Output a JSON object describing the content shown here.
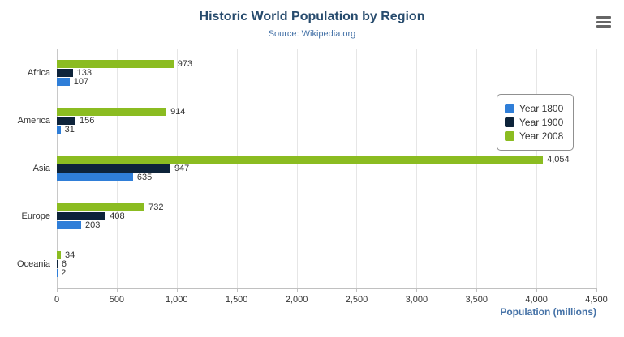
{
  "colors": {
    "title": "#274b6d",
    "subtitle": "#4572a7",
    "axis_title": "#4572a7",
    "grid": "#e6e6e6",
    "year_1800": "#2f7ed8",
    "year_1900": "#0d233a",
    "year_2008": "#8bbc21"
  },
  "menu": {
    "icon": "hamburger-icon"
  },
  "chart_data": {
    "type": "bar",
    "title": "Historic World Population by Region",
    "subtitle": "Source: Wikipedia.org",
    "xlabel": "Population (millions)",
    "categories": [
      "Africa",
      "America",
      "Asia",
      "Europe",
      "Oceania"
    ],
    "series": [
      {
        "name": "Year 2008",
        "color": "#8bbc21",
        "values": [
          973,
          914,
          4054,
          732,
          34
        ]
      },
      {
        "name": "Year 1900",
        "color": "#0d233a",
        "values": [
          133,
          156,
          947,
          408,
          6
        ]
      },
      {
        "name": "Year 1800",
        "color": "#2f7ed8",
        "values": [
          107,
          31,
          635,
          203,
          2
        ]
      }
    ],
    "legend": [
      {
        "name": "Year 1800",
        "color": "#2f7ed8"
      },
      {
        "name": "Year 1900",
        "color": "#0d233a"
      },
      {
        "name": "Year 2008",
        "color": "#8bbc21"
      }
    ],
    "legend_position": "right",
    "grid": true,
    "xlim": [
      0,
      4500
    ],
    "xticks": [
      0,
      500,
      1000,
      1500,
      2000,
      2500,
      3000,
      3500,
      4000,
      4500
    ],
    "xtick_labels": [
      "0",
      "500",
      "1,000",
      "1,500",
      "2,000",
      "2,500",
      "3,000",
      "3,500",
      "4,000",
      "4,500"
    ]
  }
}
